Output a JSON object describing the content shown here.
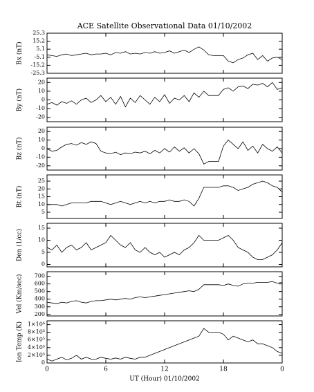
{
  "chart_data": [
    {
      "type": "line",
      "title": "ACE Satellite Observational Data   01/10/2002",
      "ylabel": "Bx (nT)",
      "color": "#000000",
      "x": [
        0,
        0.5,
        1,
        1.5,
        2,
        2.5,
        3,
        3.5,
        4,
        4.5,
        5,
        5.5,
        6,
        6.5,
        7,
        7.5,
        8,
        8.5,
        9,
        9.5,
        10,
        10.5,
        11,
        11.5,
        12,
        12.5,
        13,
        13.5,
        14,
        14.5,
        15,
        15.5,
        16,
        16.5,
        17,
        17.5,
        18,
        18.5,
        19,
        19.5,
        20,
        20.5,
        21,
        21.5,
        22,
        22.5,
        23,
        23.5,
        24
      ],
      "values": [
        -2,
        -3,
        -4,
        -2,
        -1,
        -3,
        -2,
        -1,
        0,
        -2,
        -1,
        -1,
        0,
        -2,
        1,
        0,
        2,
        -1,
        0,
        -1,
        1,
        0,
        2,
        0,
        1,
        3,
        0,
        2,
        4,
        1,
        5,
        8,
        4,
        -2,
        -3,
        -3,
        -3,
        -10,
        -12,
        -8,
        -6,
        -2,
        0,
        -8,
        -3,
        -10,
        -6,
        -5,
        -8
      ],
      "ylim": [
        -25.3,
        25.3
      ],
      "yticks": [
        -25.3,
        -15.2,
        -5.1,
        5.1,
        15.2,
        25.3
      ]
    },
    {
      "type": "line",
      "ylabel": "By (nT)",
      "color": "#000000",
      "x": [
        0,
        0.5,
        1,
        1.5,
        2,
        2.5,
        3,
        3.5,
        4,
        4.5,
        5,
        5.5,
        6,
        6.5,
        7,
        7.5,
        8,
        8.5,
        9,
        9.5,
        10,
        10.5,
        11,
        11.5,
        12,
        12.5,
        13,
        13.5,
        14,
        14.5,
        15,
        15.5,
        16,
        16.5,
        17,
        17.5,
        18,
        18.5,
        19,
        19.5,
        20,
        20.5,
        21,
        21.5,
        22,
        22.5,
        23,
        23.5,
        24
      ],
      "values": [
        -5,
        -3,
        -6,
        -2,
        -4,
        -1,
        -5,
        0,
        2,
        -3,
        0,
        5,
        -2,
        3,
        -5,
        4,
        -8,
        2,
        -3,
        5,
        0,
        -5,
        3,
        -2,
        6,
        -4,
        2,
        0,
        5,
        -2,
        8,
        3,
        10,
        5,
        5,
        5,
        12,
        14,
        10,
        15,
        16,
        13,
        18,
        17,
        19,
        15,
        20,
        12,
        14
      ],
      "ylim": [
        -25,
        25
      ],
      "yticks": [
        -20,
        -10,
        0,
        10,
        20
      ]
    },
    {
      "type": "line",
      "ylabel": "Bz (nT)",
      "color": "#000000",
      "x": [
        0,
        0.5,
        1,
        1.5,
        2,
        2.5,
        3,
        3.5,
        4,
        4.5,
        5,
        5.5,
        6,
        6.5,
        7,
        7.5,
        8,
        8.5,
        9,
        9.5,
        10,
        10.5,
        11,
        11.5,
        12,
        12.5,
        13,
        13.5,
        14,
        14.5,
        15,
        15.5,
        16,
        16.5,
        17,
        17.5,
        18,
        18.5,
        19,
        19.5,
        20,
        20.5,
        21,
        21.5,
        22,
        22.5,
        23,
        23.5,
        24
      ],
      "values": [
        0,
        -3,
        -2,
        2,
        5,
        6,
        4,
        7,
        5,
        8,
        6,
        -3,
        -5,
        -6,
        -4,
        -7,
        -5,
        -6,
        -4,
        -5,
        -3,
        -6,
        -2,
        -5,
        0,
        -4,
        2,
        -3,
        1,
        -5,
        0,
        -6,
        -18,
        -15,
        -15,
        -15,
        3,
        10,
        5,
        0,
        8,
        -2,
        3,
        -5,
        5,
        0,
        -3,
        2,
        -5
      ],
      "ylim": [
        -25,
        25
      ],
      "yticks": [
        -20,
        -10,
        0,
        10,
        20
      ]
    },
    {
      "type": "line",
      "ylabel": "Bt (nT)",
      "color": "#000000",
      "x": [
        0,
        0.5,
        1,
        1.5,
        2,
        2.5,
        3,
        3.5,
        4,
        4.5,
        5,
        5.5,
        6,
        6.5,
        7,
        7.5,
        8,
        8.5,
        9,
        9.5,
        10,
        10.5,
        11,
        11.5,
        12,
        12.5,
        13,
        13.5,
        14,
        14.5,
        15,
        15.5,
        16,
        16.5,
        17,
        17.5,
        18,
        18.5,
        19,
        19.5,
        20,
        20.5,
        21,
        21.5,
        22,
        22.5,
        23,
        23.5,
        24
      ],
      "values": [
        10,
        10,
        10,
        9,
        10,
        11,
        11,
        11,
        11,
        12,
        12,
        12,
        11,
        10,
        11,
        12,
        11,
        10,
        11,
        12,
        11,
        12,
        11,
        12,
        12,
        13,
        12,
        12,
        13,
        12,
        9,
        14,
        21,
        21,
        21,
        21,
        22,
        22,
        21,
        19,
        20,
        21,
        23,
        24,
        25,
        24,
        22,
        21,
        18
      ],
      "ylim": [
        1,
        29
      ],
      "yticks": [
        5,
        10,
        15,
        20,
        25
      ]
    },
    {
      "type": "line",
      "ylabel": "Den (1/cc)",
      "color": "#000000",
      "x": [
        0,
        0.5,
        1,
        1.5,
        2,
        2.5,
        3,
        3.5,
        4,
        4.5,
        5,
        5.5,
        6,
        6.5,
        7,
        7.5,
        8,
        8.5,
        9,
        9.5,
        10,
        10.5,
        11,
        11.5,
        12,
        12.5,
        13,
        13.5,
        14,
        14.5,
        15,
        15.5,
        16,
        16.5,
        17,
        17.5,
        18,
        18.5,
        19,
        19.5,
        20,
        20.5,
        21,
        21.5,
        22,
        22.5,
        23,
        23.5,
        24
      ],
      "values": [
        7,
        6,
        8,
        5,
        7,
        8,
        6,
        7,
        9,
        6,
        7,
        8,
        9,
        12,
        10,
        8,
        7,
        9,
        6,
        5,
        7,
        5,
        4,
        5,
        3,
        4,
        5,
        4,
        6,
        7,
        9,
        12,
        10,
        10,
        10,
        10,
        11,
        12,
        10,
        7,
        6,
        5,
        3,
        2,
        2,
        3,
        4,
        6,
        9
      ],
      "ylim": [
        -1,
        17
      ],
      "yticks": [
        0,
        5,
        10,
        15
      ]
    },
    {
      "type": "line",
      "ylabel": "Vel (Km/sec)",
      "color": "#000000",
      "x": [
        0,
        0.5,
        1,
        1.5,
        2,
        2.5,
        3,
        3.5,
        4,
        4.5,
        5,
        5.5,
        6,
        6.5,
        7,
        7.5,
        8,
        8.5,
        9,
        9.5,
        10,
        10.5,
        11,
        11.5,
        12,
        12.5,
        13,
        13.5,
        14,
        14.5,
        15,
        15.5,
        16,
        16.5,
        17,
        17.5,
        18,
        18.5,
        19,
        19.5,
        20,
        20.5,
        21,
        21.5,
        22,
        22.5,
        23,
        23.5,
        24
      ],
      "values": [
        360,
        350,
        340,
        360,
        350,
        370,
        380,
        360,
        350,
        370,
        380,
        380,
        390,
        400,
        390,
        400,
        410,
        400,
        420,
        430,
        420,
        430,
        440,
        450,
        460,
        470,
        480,
        490,
        500,
        510,
        500,
        530,
        590,
        590,
        590,
        590,
        580,
        600,
        580,
        570,
        600,
        610,
        610,
        620,
        620,
        620,
        630,
        610,
        620
      ],
      "ylim": [
        180,
        760
      ],
      "yticks": [
        200,
        300,
        400,
        500,
        600,
        700
      ]
    },
    {
      "type": "line",
      "ylabel": "Ion Temp (K)",
      "xlabel": "UT (Hour)  01/10/2002",
      "color": "#000000",
      "x": [
        0,
        0.5,
        1,
        1.5,
        2,
        2.5,
        3,
        3.5,
        4,
        4.5,
        5,
        5.5,
        6,
        6.5,
        7,
        7.5,
        8,
        8.5,
        9,
        9.5,
        10,
        10.5,
        11,
        11.5,
        12,
        12.5,
        13,
        13.5,
        14,
        14.5,
        15,
        15.5,
        16,
        16.5,
        17,
        17.5,
        18,
        18.5,
        19,
        19.5,
        20,
        20.5,
        21,
        21.5,
        22,
        22.5,
        23,
        23.5,
        24
      ],
      "values": [
        100000,
        50000,
        100000,
        150000,
        80000,
        120000,
        200000,
        100000,
        150000,
        100000,
        100000,
        150000,
        120000,
        100000,
        130000,
        100000,
        150000,
        120000,
        100000,
        150000,
        150000,
        200000,
        250000,
        300000,
        350000,
        400000,
        450000,
        500000,
        550000,
        600000,
        650000,
        700000,
        900000,
        800000,
        800000,
        800000,
        750000,
        600000,
        700000,
        650000,
        600000,
        550000,
        600000,
        500000,
        500000,
        450000,
        400000,
        300000,
        250000
      ],
      "ylim": [
        0,
        1100000
      ],
      "yticks": [
        0,
        {
          "value": 200000,
          "label": "2×10⁵"
        },
        {
          "value": 400000,
          "label": "4×10⁵"
        },
        {
          "value": 600000,
          "label": "6×10⁵"
        },
        {
          "value": 800000,
          "label": "8×10⁵"
        },
        {
          "value": 1000000,
          "label": "1×10⁶"
        }
      ],
      "xlim": [
        0,
        24
      ],
      "xticks": [
        0,
        6,
        12,
        18,
        {
          "value": 24,
          "label": "0"
        }
      ]
    }
  ]
}
